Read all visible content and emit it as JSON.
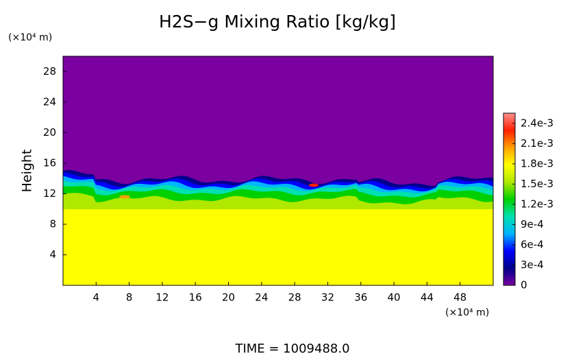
{
  "chart_data": {
    "type": "heatmap",
    "title": "H2S−g Mixing Ratio [kg/kg]",
    "xlabel": "(×10⁴ m)",
    "ylabel": "Height",
    "yunit": "(×10⁴ m)",
    "footer": "TIME = 1009488.0",
    "xlim": [
      0,
      52
    ],
    "xticks": [
      4,
      8,
      12,
      16,
      20,
      24,
      28,
      32,
      36,
      40,
      44,
      48
    ],
    "ylim": [
      0,
      30
    ],
    "yticks": [
      4,
      8,
      12,
      16,
      20,
      24,
      28
    ],
    "zlim": [
      0,
      0.00255
    ],
    "zticks": [
      0,
      {
        "value": 0.0003,
        "label": "3e-4"
      },
      {
        "value": 0.0006,
        "label": "6e-4"
      },
      {
        "value": 0.0009,
        "label": "9e-4"
      },
      {
        "value": 0.0012,
        "label": "1.2e-3"
      },
      {
        "value": 0.0015,
        "label": "1.5e-3"
      },
      {
        "value": 0.0018,
        "label": "1.8e-3"
      },
      {
        "value": 0.0021,
        "label": "2.1e-3"
      },
      {
        "value": 0.0024,
        "label": "2.4e-3"
      }
    ],
    "colormap": [
      "#7a00a0",
      "#00008c",
      "#0000ff",
      "#00b4ff",
      "#00e0b0",
      "#00d000",
      "#b0e800",
      "#ffff00",
      "#ffa000",
      "#ff2000",
      "#ff9090"
    ]
  }
}
